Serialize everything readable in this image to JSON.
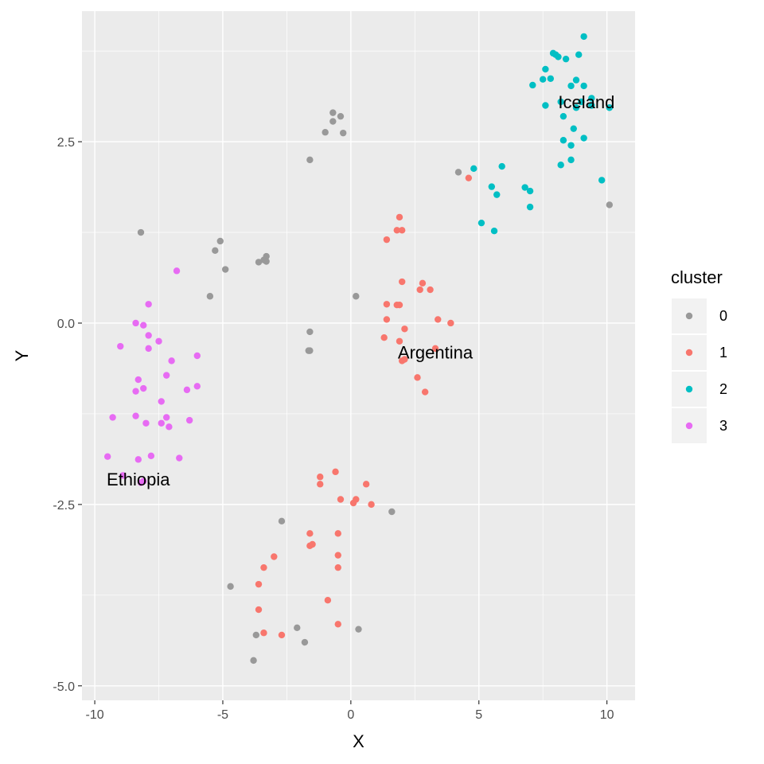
{
  "chart_data": {
    "type": "scatter",
    "title": "",
    "xlabel": "X",
    "ylabel": "Y",
    "xlim": [
      -10.5,
      11.1
    ],
    "ylim": [
      -5.2,
      4.3
    ],
    "x_ticks": [
      -10,
      -5,
      0,
      5,
      10
    ],
    "x_tick_labels": [
      "-10",
      "-5",
      "0",
      "5",
      "10"
    ],
    "y_ticks": [
      -5.0,
      -2.5,
      0.0,
      2.5
    ],
    "y_tick_labels": [
      "-5.0",
      "-2.5",
      "0.0",
      "2.5"
    ],
    "grid": true,
    "legend": {
      "title": "cluster",
      "position": "right",
      "entries": [
        {
          "label": "0",
          "color": "#999999"
        },
        {
          "label": "1",
          "color": "#F8766D"
        },
        {
          "label": "2",
          "color": "#00BFC4"
        },
        {
          "label": "3",
          "color": "#E76BF3"
        }
      ]
    },
    "series": [
      {
        "cluster": "0",
        "color": "#999999",
        "points": [
          [
            -0.7,
            2.9
          ],
          [
            -0.4,
            2.85
          ],
          [
            -0.7,
            2.78
          ],
          [
            -1.0,
            2.63
          ],
          [
            -0.3,
            2.62
          ],
          [
            -1.6,
            2.25
          ],
          [
            4.2,
            2.08
          ],
          [
            10.1,
            1.63
          ],
          [
            -8.2,
            1.25
          ],
          [
            -5.1,
            1.13
          ],
          [
            -5.3,
            1.0
          ],
          [
            -4.9,
            0.74
          ],
          [
            -5.5,
            0.37
          ],
          [
            -3.3,
            0.92
          ],
          [
            -3.4,
            0.87
          ],
          [
            -3.6,
            0.84
          ],
          [
            -3.3,
            0.85
          ],
          [
            0.2,
            0.37
          ],
          [
            -1.6,
            -0.12
          ],
          [
            -1.6,
            -0.38
          ],
          [
            -1.65,
            -0.38
          ],
          [
            -2.7,
            -2.73
          ],
          [
            1.6,
            -2.6
          ],
          [
            -4.7,
            -3.63
          ],
          [
            -2.1,
            -4.2
          ],
          [
            0.3,
            -4.22
          ],
          [
            -3.7,
            -4.3
          ],
          [
            -1.8,
            -4.4
          ],
          [
            -3.8,
            -4.65
          ]
        ]
      },
      {
        "cluster": "1",
        "color": "#F8766D",
        "points": [
          [
            4.6,
            2.0
          ],
          [
            1.9,
            1.46
          ],
          [
            1.8,
            1.28
          ],
          [
            2.0,
            1.28
          ],
          [
            1.4,
            1.15
          ],
          [
            2.0,
            0.57
          ],
          [
            2.8,
            0.55
          ],
          [
            3.1,
            0.46
          ],
          [
            2.7,
            0.46
          ],
          [
            1.4,
            0.26
          ],
          [
            1.8,
            0.25
          ],
          [
            1.9,
            0.25
          ],
          [
            1.4,
            0.05
          ],
          [
            3.4,
            0.05
          ],
          [
            3.9,
            0.0
          ],
          [
            2.1,
            -0.08
          ],
          [
            1.3,
            -0.2
          ],
          [
            1.9,
            -0.25
          ],
          [
            3.3,
            -0.35
          ],
          [
            2.0,
            -0.52
          ],
          [
            2.1,
            -0.5
          ],
          [
            2.6,
            -0.75
          ],
          [
            2.9,
            -0.95
          ],
          [
            -0.6,
            -2.05
          ],
          [
            -1.2,
            -2.12
          ],
          [
            -1.2,
            -2.22
          ],
          [
            0.6,
            -2.22
          ],
          [
            -0.4,
            -2.43
          ],
          [
            0.2,
            -2.43
          ],
          [
            0.1,
            -2.48
          ],
          [
            0.8,
            -2.5
          ],
          [
            -1.6,
            -2.9
          ],
          [
            -0.5,
            -2.9
          ],
          [
            -1.5,
            -3.05
          ],
          [
            -1.6,
            -3.07
          ],
          [
            -0.5,
            -3.2
          ],
          [
            -3.0,
            -3.22
          ],
          [
            -3.4,
            -3.37
          ],
          [
            -0.5,
            -3.37
          ],
          [
            -3.6,
            -3.6
          ],
          [
            -0.9,
            -3.82
          ],
          [
            -3.6,
            -3.95
          ],
          [
            -0.5,
            -4.15
          ],
          [
            -3.4,
            -4.27
          ],
          [
            -2.7,
            -4.3
          ]
        ]
      },
      {
        "cluster": "2",
        "color": "#00BFC4",
        "points": [
          [
            9.1,
            3.95
          ],
          [
            7.9,
            3.72
          ],
          [
            8.0,
            3.7
          ],
          [
            8.9,
            3.7
          ],
          [
            8.1,
            3.67
          ],
          [
            8.4,
            3.64
          ],
          [
            7.6,
            3.5
          ],
          [
            7.8,
            3.37
          ],
          [
            7.5,
            3.36
          ],
          [
            8.8,
            3.35
          ],
          [
            7.1,
            3.28
          ],
          [
            8.6,
            3.27
          ],
          [
            9.1,
            3.27
          ],
          [
            9.4,
            3.1
          ],
          [
            8.2,
            3.05
          ],
          [
            9.0,
            3.05
          ],
          [
            7.6,
            3.0
          ],
          [
            9.4,
            3.0
          ],
          [
            10.1,
            2.97
          ],
          [
            8.8,
            2.97
          ],
          [
            8.3,
            2.85
          ],
          [
            8.7,
            2.68
          ],
          [
            8.3,
            2.52
          ],
          [
            9.1,
            2.55
          ],
          [
            8.6,
            2.45
          ],
          [
            8.6,
            2.25
          ],
          [
            8.2,
            2.18
          ],
          [
            4.8,
            2.13
          ],
          [
            5.9,
            2.16
          ],
          [
            9.8,
            1.97
          ],
          [
            5.5,
            1.88
          ],
          [
            6.8,
            1.87
          ],
          [
            7.0,
            1.82
          ],
          [
            5.7,
            1.77
          ],
          [
            7.0,
            1.6
          ],
          [
            5.1,
            1.38
          ],
          [
            5.6,
            1.27
          ]
        ]
      },
      {
        "cluster": "3",
        "color": "#E76BF3",
        "points": [
          [
            -6.8,
            0.72
          ],
          [
            -7.9,
            0.26
          ],
          [
            -8.4,
            0.0
          ],
          [
            -8.1,
            -0.03
          ],
          [
            -7.9,
            -0.17
          ],
          [
            -7.5,
            -0.25
          ],
          [
            -9.0,
            -0.32
          ],
          [
            -7.9,
            -0.35
          ],
          [
            -6.0,
            -0.45
          ],
          [
            -7.0,
            -0.52
          ],
          [
            -7.2,
            -0.72
          ],
          [
            -8.3,
            -0.78
          ],
          [
            -6.0,
            -0.87
          ],
          [
            -8.1,
            -0.9
          ],
          [
            -8.4,
            -0.94
          ],
          [
            -6.4,
            -0.92
          ],
          [
            -7.4,
            -1.08
          ],
          [
            -8.4,
            -1.28
          ],
          [
            -9.3,
            -1.3
          ],
          [
            -7.2,
            -1.3
          ],
          [
            -6.3,
            -1.34
          ],
          [
            -8.0,
            -1.38
          ],
          [
            -7.4,
            -1.38
          ],
          [
            -7.1,
            -1.43
          ],
          [
            -9.5,
            -1.84
          ],
          [
            -7.8,
            -1.83
          ],
          [
            -6.7,
            -1.86
          ],
          [
            -8.3,
            -1.88
          ],
          [
            -8.9,
            -2.1
          ],
          [
            -8.1,
            -2.18
          ],
          [
            -8.2,
            -2.2
          ]
        ]
      }
    ],
    "annotations": [
      {
        "text": "Iceland",
        "x": 9.2,
        "y": 3.05
      },
      {
        "text": "Argentina",
        "x": 3.3,
        "y": -0.4
      },
      {
        "text": "Ethiopia",
        "x": -8.3,
        "y": -2.15
      }
    ]
  }
}
